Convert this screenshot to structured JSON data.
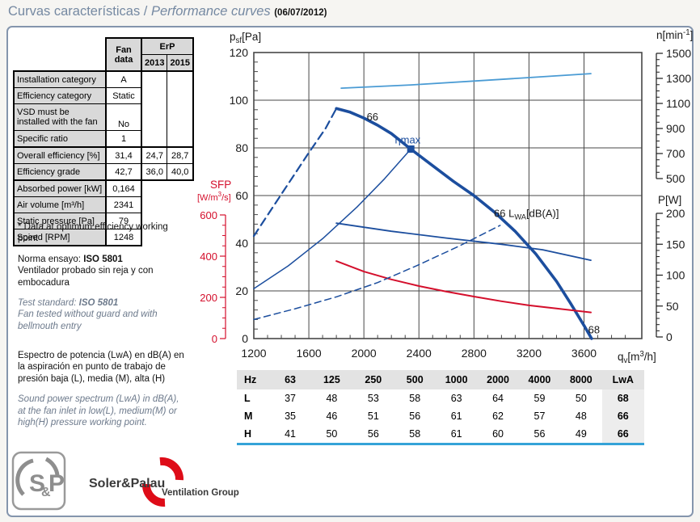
{
  "title": {
    "part_es": "Curvas características",
    "divider": " / ",
    "part_en": "Performance curves",
    "date": "(06/07/2012)"
  },
  "theme": {
    "box_border": "#8495ad",
    "title_color": "#7589a2",
    "logo_red": "#de0c18",
    "table_underline_blue": "#35a3d8",
    "curve_dark_blue": "#1c4e9e",
    "curve_light_blue": "#4a9bd4",
    "curve_red": "#d40f2c"
  },
  "spec_table": {
    "header": {
      "fan_line1": "Fan",
      "fan_line2": "data",
      "erp": "ErP",
      "y2013": "2013",
      "y2015": "2015"
    },
    "rows": [
      {
        "label": "Installation category",
        "fan": "A"
      },
      {
        "label": "Efficiency category",
        "fan": "Static"
      },
      {
        "label": "VSD must be installed with the fan",
        "fan": "No",
        "tall": true
      },
      {
        "label": "Specific ratio",
        "fan": "1",
        "group_end": true
      },
      {
        "label": "Overall efficiency [%]",
        "fan": "31,4",
        "e2013": "24,7",
        "e2015": "28,7"
      },
      {
        "label": "Efficiency grade",
        "fan": "42,7",
        "e2013": "36,0",
        "e2015": "40,0",
        "group_end": true
      },
      {
        "label": "Absorbed power [kW]",
        "fan": "0,164"
      },
      {
        "label": "Air volume [m³/h]",
        "fan": "2341"
      },
      {
        "label": "Static pressure [Pa]",
        "fan": "79"
      },
      {
        "label": "Speed [RPM]",
        "fan": "1248"
      }
    ]
  },
  "notes": {
    "optimum": "* Data at optimum efficiency working point",
    "norma_prefix": "Norma ensayo: ",
    "norma_bold": "ISO 5801",
    "norma_body": "Ventilador probado sin reja y con embocadura",
    "test_prefix": "Test standard: ",
    "test_bold": "ISO 5801",
    "test_body": "Fan tested without guard and with bellmouth entry",
    "espectro": "Espectro de potencia (LwA) en dB(A) en la aspiración en punto de trabajo de presión baja (L), media (M), alta (H)",
    "sound": "Sound power spectrum (LwA) in dB(A), at the fan inlet in low(L), medium(M) or high(H) pressure working point."
  },
  "sound_table": {
    "headers": [
      "Hz",
      "63",
      "125",
      "250",
      "500",
      "1000",
      "2000",
      "4000",
      "8000",
      "LwA"
    ],
    "rows": [
      {
        "label": "L",
        "values": [
          37,
          48,
          53,
          58,
          63,
          64,
          59,
          50
        ],
        "lwa": 68
      },
      {
        "label": "M",
        "values": [
          35,
          46,
          51,
          56,
          61,
          62,
          57,
          48
        ],
        "lwa": 66
      },
      {
        "label": "H",
        "values": [
          41,
          50,
          56,
          58,
          61,
          60,
          56,
          49
        ],
        "lwa": 66
      }
    ]
  },
  "logo": {
    "mark_s": "S",
    "mark_amp": "&",
    "mark_p": "P",
    "company": "Soler&Palau",
    "group": "Ventilation Group"
  },
  "chart_data": {
    "type": "line",
    "x_axis": {
      "min": 1200,
      "max": 4020,
      "ticks": [
        1200,
        1600,
        2000,
        2400,
        2800,
        3200,
        3600
      ],
      "minor_step": 100,
      "title_parts": [
        [
          "q"
        ],
        [
          "v",
          "sub"
        ],
        [
          "[m"
        ],
        [
          "3",
          "sup"
        ],
        [
          "/h]"
        ]
      ]
    },
    "pressure_axis": {
      "min": 0,
      "max": 120,
      "ticks": [
        0,
        20,
        40,
        60,
        80,
        100,
        120
      ],
      "minor_step": 4,
      "title_parts": [
        [
          "p"
        ],
        [
          "sf",
          "sub"
        ],
        [
          "[Pa]"
        ]
      ]
    },
    "sfp_axis": {
      "min": 0,
      "max": 600,
      "ticks": [
        0,
        200,
        400,
        600
      ],
      "minor_step": 50,
      "color": "#d40f2c",
      "title_line1": "SFP",
      "title_parts": [
        [
          "[W/m"
        ],
        [
          "3",
          "sup"
        ],
        [
          "/s]"
        ]
      ]
    },
    "speed_axis": {
      "min": 500,
      "max": 1500,
      "ticks": [
        500,
        700,
        900,
        1100,
        1300,
        1500
      ],
      "minor_step": 50,
      "title_parts": [
        [
          "n[min"
        ],
        [
          "-1",
          "sup"
        ],
        [
          "]"
        ]
      ]
    },
    "power_axis": {
      "min": 0,
      "max": 200,
      "ticks": [
        0,
        50,
        100,
        150,
        200
      ],
      "minor_step": 10,
      "title_parts": [
        [
          "P[W]"
        ]
      ]
    },
    "series": [
      {
        "name": "pressure-curve",
        "axis": "pressure",
        "style": "solid",
        "width": 3.6,
        "color": "#1c4e9e",
        "points": [
          [
            1800,
            96.5
          ],
          [
            1900,
            95
          ],
          [
            2000,
            92.5
          ],
          [
            2100,
            89.5
          ],
          [
            2200,
            86
          ],
          [
            2341,
            79.5
          ],
          [
            2500,
            72.5
          ],
          [
            2650,
            66
          ],
          [
            2800,
            60
          ],
          [
            2950,
            53
          ],
          [
            3100,
            45
          ],
          [
            3250,
            35.5
          ],
          [
            3400,
            24
          ],
          [
            3500,
            15
          ],
          [
            3600,
            5.5
          ],
          [
            3655,
            0
          ]
        ]
      },
      {
        "name": "pressure-curve-unstable",
        "axis": "pressure",
        "style": "dashed",
        "dash": "10,6",
        "width": 2.2,
        "color": "#1c4e9e",
        "points": [
          [
            1200,
            43
          ],
          [
            1400,
            60.5
          ],
          [
            1600,
            78
          ],
          [
            1720,
            88
          ],
          [
            1795,
            96
          ]
        ]
      },
      {
        "name": "system-resistance-curve",
        "axis": "pressure",
        "style": "solid",
        "width": 1.5,
        "color": "#1c4e9e",
        "points": [
          [
            1200,
            20.9
          ],
          [
            1450,
            30.5
          ],
          [
            1700,
            41.9
          ],
          [
            1950,
            55.2
          ],
          [
            2150,
            67
          ],
          [
            2341,
            79.5
          ]
        ]
      },
      {
        "name": "absorbed-power-curve",
        "axis": "power",
        "style": "solid",
        "width": 1.8,
        "color": "#1c4e9e",
        "points": [
          [
            1800,
            184
          ],
          [
            2200,
            171
          ],
          [
            2600,
            160
          ],
          [
            3000,
            150
          ],
          [
            3300,
            141
          ],
          [
            3650,
            124
          ]
        ]
      },
      {
        "name": "speed-curve",
        "axis": "speed",
        "style": "solid",
        "width": 1.8,
        "color": "#4a9bd4",
        "points": [
          [
            1835,
            1222
          ],
          [
            2341,
            1248
          ],
          [
            3000,
            1292
          ],
          [
            3650,
            1338
          ]
        ]
      },
      {
        "name": "sfp-curve",
        "axis": "sfp",
        "style": "solid",
        "width": 2,
        "color": "#d40f2c",
        "points": [
          [
            1800,
            376
          ],
          [
            2000,
            325
          ],
          [
            2200,
            287
          ],
          [
            2400,
            255
          ],
          [
            2600,
            228
          ],
          [
            2800,
            204
          ],
          [
            3000,
            181
          ],
          [
            3200,
            161
          ],
          [
            3400,
            146
          ],
          [
            3650,
            127
          ]
        ]
      },
      {
        "name": "lwa-curve",
        "axis": "pressure",
        "style": "dashed",
        "dash": "8,5",
        "width": 1.5,
        "color": "#1c4e9e",
        "points": [
          [
            1200,
            8
          ],
          [
            1500,
            12.5
          ],
          [
            1800,
            17.5
          ],
          [
            2100,
            23.5
          ],
          [
            2400,
            31
          ],
          [
            2700,
            39
          ],
          [
            2990,
            47.5
          ]
        ]
      }
    ],
    "optimum_point": {
      "q": 2341,
      "p": 79.5
    },
    "annotations": [
      {
        "text": "66",
        "q": 2020,
        "p": 91.5,
        "color": "#1a1a1a"
      },
      {
        "text": "ηmax",
        "q": 2225,
        "p": 81.8,
        "color": "#1c4e9e"
      },
      {
        "parts": [
          [
            "66 L"
          ],
          [
            "WA",
            "sub"
          ],
          [
            "[dB(A)]"
          ]
        ],
        "q": 2945,
        "p": 51,
        "color": "#1a1a1a"
      },
      {
        "text": "68",
        "q": 3630,
        "p": 2.2,
        "color": "#1a1a1a"
      }
    ]
  }
}
